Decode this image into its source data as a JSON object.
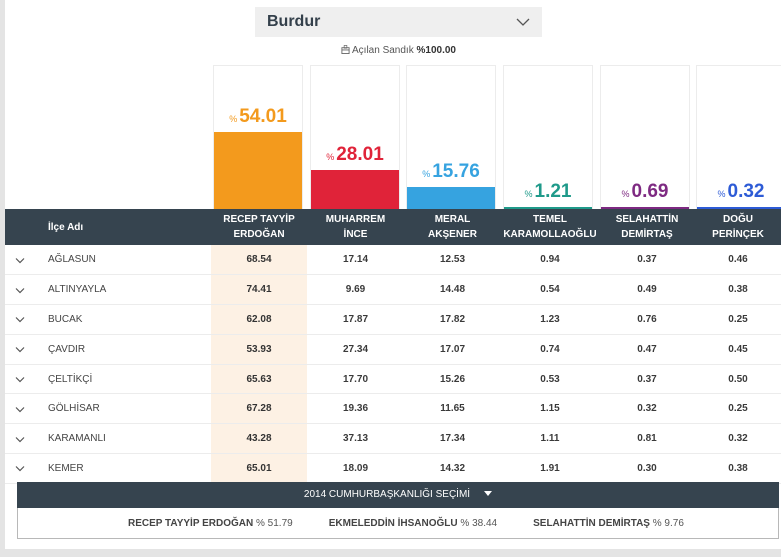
{
  "location_select": {
    "value": "Burdur"
  },
  "opened_ballot": {
    "label": "Açılan Sandık",
    "value": "%100.00"
  },
  "candidates": [
    {
      "name_line1": "RECEP TAYYİP",
      "name_line2": "ERDOĞAN",
      "pct_symbol": "%",
      "value": "54.01",
      "share": 54.01,
      "color": "#f39a1d"
    },
    {
      "name_line1": "MUHARREM",
      "name_line2": "İNCE",
      "pct_symbol": "%",
      "value": "28.01",
      "share": 28.01,
      "color": "#e02339"
    },
    {
      "name_line1": "MERAL",
      "name_line2": "AKŞENER",
      "pct_symbol": "%",
      "value": "15.76",
      "share": 15.76,
      "color": "#36a3e0"
    },
    {
      "name_line1": "TEMEL",
      "name_line2": "KARAMOLLAOĞLU",
      "pct_symbol": "%",
      "value": "1.21",
      "share": 1.21,
      "color": "#1f9a8a"
    },
    {
      "name_line1": "SELAHATTİN",
      "name_line2": "DEMİRTAŞ",
      "pct_symbol": "%",
      "value": "0.69",
      "share": 0.69,
      "color": "#7e2a82"
    },
    {
      "name_line1": "DOĞU",
      "name_line2": "PERİNÇEK",
      "pct_symbol": "%",
      "value": "0.32",
      "share": 0.32,
      "color": "#2d5bd6"
    }
  ],
  "table": {
    "name_header": "İlçe Adı",
    "rows": [
      {
        "district": "AĞLASUN",
        "values": [
          "68.54",
          "17.14",
          "12.53",
          "0.94",
          "0.37",
          "0.46"
        ]
      },
      {
        "district": "ALTINYAYLA",
        "values": [
          "74.41",
          "9.69",
          "14.48",
          "0.54",
          "0.49",
          "0.38"
        ]
      },
      {
        "district": "BUCAK",
        "values": [
          "62.08",
          "17.87",
          "17.82",
          "1.23",
          "0.76",
          "0.25"
        ]
      },
      {
        "district": "ÇAVDIR",
        "values": [
          "53.93",
          "27.34",
          "17.07",
          "0.74",
          "0.47",
          "0.45"
        ]
      },
      {
        "district": "ÇELTİKÇİ",
        "values": [
          "65.63",
          "17.70",
          "15.26",
          "0.53",
          "0.37",
          "0.50"
        ]
      },
      {
        "district": "GÖLHİSAR",
        "values": [
          "67.28",
          "19.36",
          "11.65",
          "1.15",
          "0.32",
          "0.25"
        ]
      },
      {
        "district": "KARAMANLI",
        "values": [
          "43.28",
          "37.13",
          "17.34",
          "1.11",
          "0.81",
          "0.32"
        ]
      },
      {
        "district": "KEMER",
        "values": [
          "65.01",
          "18.09",
          "14.32",
          "1.91",
          "0.30",
          "0.38"
        ]
      }
    ]
  },
  "previous_election": {
    "title": "2014 CUMHURBAŞKANLIĞI SEÇİMİ",
    "results": [
      {
        "name": "RECEP TAYYİP ERDOĞAN",
        "value": "% 51.79"
      },
      {
        "name": "EKMELEDDİN İHSANOĞLU",
        "value": "% 38.44"
      },
      {
        "name": "SELAHATTİN DEMİRTAŞ",
        "value": "% 9.76"
      }
    ]
  }
}
